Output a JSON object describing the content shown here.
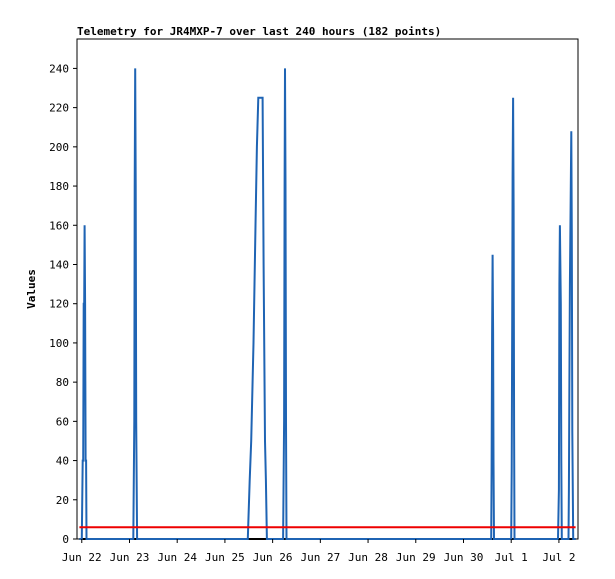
{
  "chart_data": {
    "type": "line",
    "title": "Telemetry for JR4MXP-7 over last 240 hours (182 points)",
    "xlabel": "",
    "ylabel": "Values",
    "xlim": [
      -0.1,
      10.4
    ],
    "ylim": [
      0,
      255
    ],
    "x_ticks": [
      {
        "label": "Jun 22",
        "x": 0
      },
      {
        "label": "Jun 23",
        "x": 1
      },
      {
        "label": "Jun 24",
        "x": 2
      },
      {
        "label": "Jun 25",
        "x": 3
      },
      {
        "label": "Jun 26",
        "x": 4
      },
      {
        "label": "Jun 27",
        "x": 5
      },
      {
        "label": "Jun 28",
        "x": 6
      },
      {
        "label": "Jun 29",
        "x": 7
      },
      {
        "label": "Jun 30",
        "x": 8
      },
      {
        "label": "Jul 1",
        "x": 9
      },
      {
        "label": "Jul 2",
        "x": 10
      }
    ],
    "y_ticks": [
      0,
      20,
      40,
      60,
      80,
      100,
      120,
      140,
      160,
      180,
      200,
      220,
      240
    ],
    "grid": false,
    "legend": "none",
    "series": [
      {
        "color": "#1f64b4",
        "points": [
          [
            -0.05,
            0
          ],
          [
            0.0,
            0
          ],
          [
            0.02,
            40
          ],
          [
            0.03,
            40
          ],
          [
            0.04,
            120
          ],
          [
            0.05,
            120
          ],
          [
            0.06,
            160
          ],
          [
            0.07,
            120
          ],
          [
            0.08,
            40
          ],
          [
            0.09,
            40
          ],
          [
            0.1,
            0
          ],
          [
            1.08,
            0
          ],
          [
            1.1,
            60
          ],
          [
            1.11,
            180
          ],
          [
            1.12,
            240
          ],
          [
            1.13,
            180
          ],
          [
            1.14,
            60
          ],
          [
            1.16,
            0
          ],
          [
            3.48,
            0
          ],
          [
            3.49,
            8
          ],
          [
            3.52,
            30
          ],
          [
            3.55,
            50
          ],
          [
            3.6,
            100
          ],
          [
            3.64,
            160
          ],
          [
            3.67,
            200
          ],
          [
            3.7,
            225
          ],
          [
            3.73,
            225
          ],
          [
            3.79,
            225
          ],
          [
            3.81,
            140
          ],
          [
            3.84,
            50
          ],
          [
            3.86,
            30
          ],
          [
            3.88,
            0
          ],
          [
            4.22,
            0
          ],
          [
            4.24,
            60
          ],
          [
            4.25,
            180
          ],
          [
            4.26,
            240
          ],
          [
            4.27,
            180
          ],
          [
            4.28,
            60
          ],
          [
            4.29,
            0
          ],
          [
            8.58,
            0
          ],
          [
            8.59,
            35
          ],
          [
            8.6,
            105
          ],
          [
            8.61,
            145
          ],
          [
            8.62,
            105
          ],
          [
            8.63,
            40
          ],
          [
            8.64,
            0
          ],
          [
            9.0,
            0
          ],
          [
            9.01,
            35
          ],
          [
            9.02,
            110
          ],
          [
            9.03,
            185
          ],
          [
            9.04,
            225
          ],
          [
            9.05,
            170
          ],
          [
            9.06,
            55
          ],
          [
            9.07,
            0
          ],
          [
            9.98,
            0
          ],
          [
            10.0,
            25
          ],
          [
            10.01,
            130
          ],
          [
            10.02,
            160
          ],
          [
            10.04,
            120
          ],
          [
            10.05,
            40
          ],
          [
            10.06,
            0
          ],
          [
            10.2,
            0
          ],
          [
            10.21,
            25
          ],
          [
            10.22,
            80
          ],
          [
            10.23,
            130
          ],
          [
            10.25,
            180
          ],
          [
            10.26,
            208
          ],
          [
            10.27,
            155
          ],
          [
            10.28,
            55
          ],
          [
            10.3,
            0
          ],
          [
            10.35,
            0
          ]
        ]
      },
      {
        "color": "#ee0000",
        "points": [
          [
            -0.05,
            6
          ],
          [
            10.35,
            6
          ]
        ]
      }
    ]
  }
}
